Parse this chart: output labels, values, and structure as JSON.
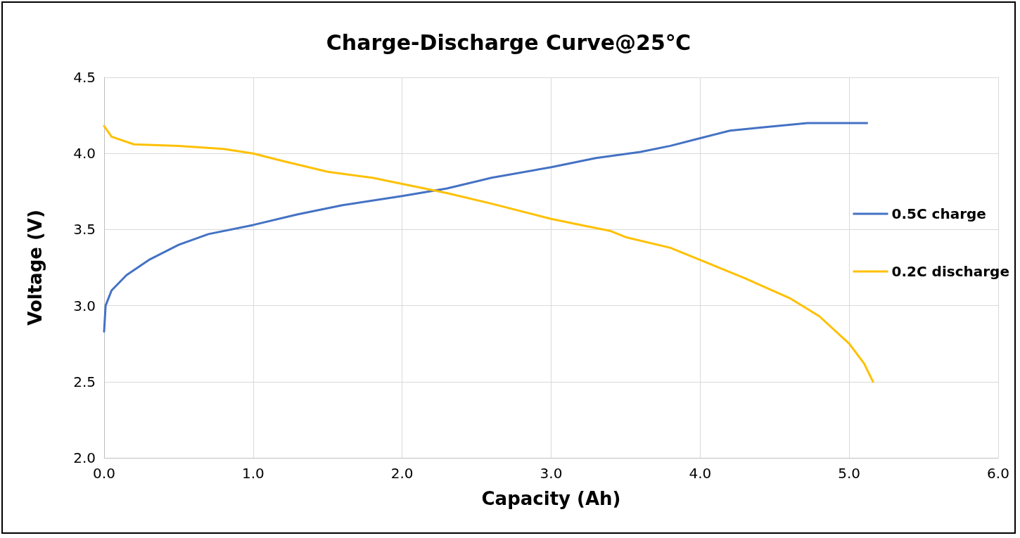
{
  "chart_data": {
    "type": "line",
    "title": "Charge-Discharge Curve@25℃",
    "xlabel": "Capacity (Ah)",
    "ylabel": "Voltage (V)",
    "xlim": [
      0,
      6
    ],
    "xticks": [
      {
        "value": 0,
        "label": "0.0"
      },
      {
        "value": 1,
        "label": "1.0"
      },
      {
        "value": 2,
        "label": "2.0"
      },
      {
        "value": 3,
        "label": "3.0"
      },
      {
        "value": 4,
        "label": "4.0"
      },
      {
        "value": 5,
        "label": "5.0"
      },
      {
        "value": 6,
        "label": "6.0"
      }
    ],
    "ylim": [
      2,
      4.5
    ],
    "yticks": [
      {
        "value": 2,
        "label": "2.0"
      },
      2.5,
      {
        "value": 3,
        "label": "3.0"
      },
      3.5,
      {
        "value": 4,
        "label": "4.0"
      },
      4.5
    ],
    "grid": true,
    "legend": "right",
    "marker": "none",
    "line_style": "solid",
    "series": [
      {
        "name": "0.5C charge",
        "color": "#4472c4",
        "x": [
          0,
          0.01,
          0.05,
          0.15,
          0.3,
          0.5,
          0.7,
          1.0,
          1.3,
          1.6,
          2.0,
          2.3,
          2.6,
          3.0,
          3.3,
          3.6,
          3.8,
          4.0,
          4.2,
          4.4,
          4.72,
          5.12
        ],
        "values": [
          2.83,
          3.0,
          3.1,
          3.2,
          3.3,
          3.4,
          3.47,
          3.53,
          3.6,
          3.66,
          3.72,
          3.77,
          3.84,
          3.91,
          3.97,
          4.01,
          4.05,
          4.1,
          4.15,
          4.17,
          4.2,
          4.2
        ]
      },
      {
        "name": "0.2C discharge",
        "color": "#ffc000",
        "x": [
          0,
          0.05,
          0.2,
          0.5,
          0.8,
          1.0,
          1.2,
          1.5,
          1.8,
          2.0,
          2.3,
          2.6,
          3.0,
          3.2,
          3.4,
          3.5,
          3.8,
          4.0,
          4.3,
          4.6,
          4.8,
          5.0,
          5.1,
          5.16
        ],
        "values": [
          4.18,
          4.11,
          4.06,
          4.05,
          4.03,
          4.0,
          3.95,
          3.88,
          3.84,
          3.8,
          3.74,
          3.67,
          3.57,
          3.53,
          3.49,
          3.45,
          3.38,
          3.3,
          3.18,
          3.05,
          2.93,
          2.75,
          2.62,
          2.5
        ]
      }
    ]
  }
}
